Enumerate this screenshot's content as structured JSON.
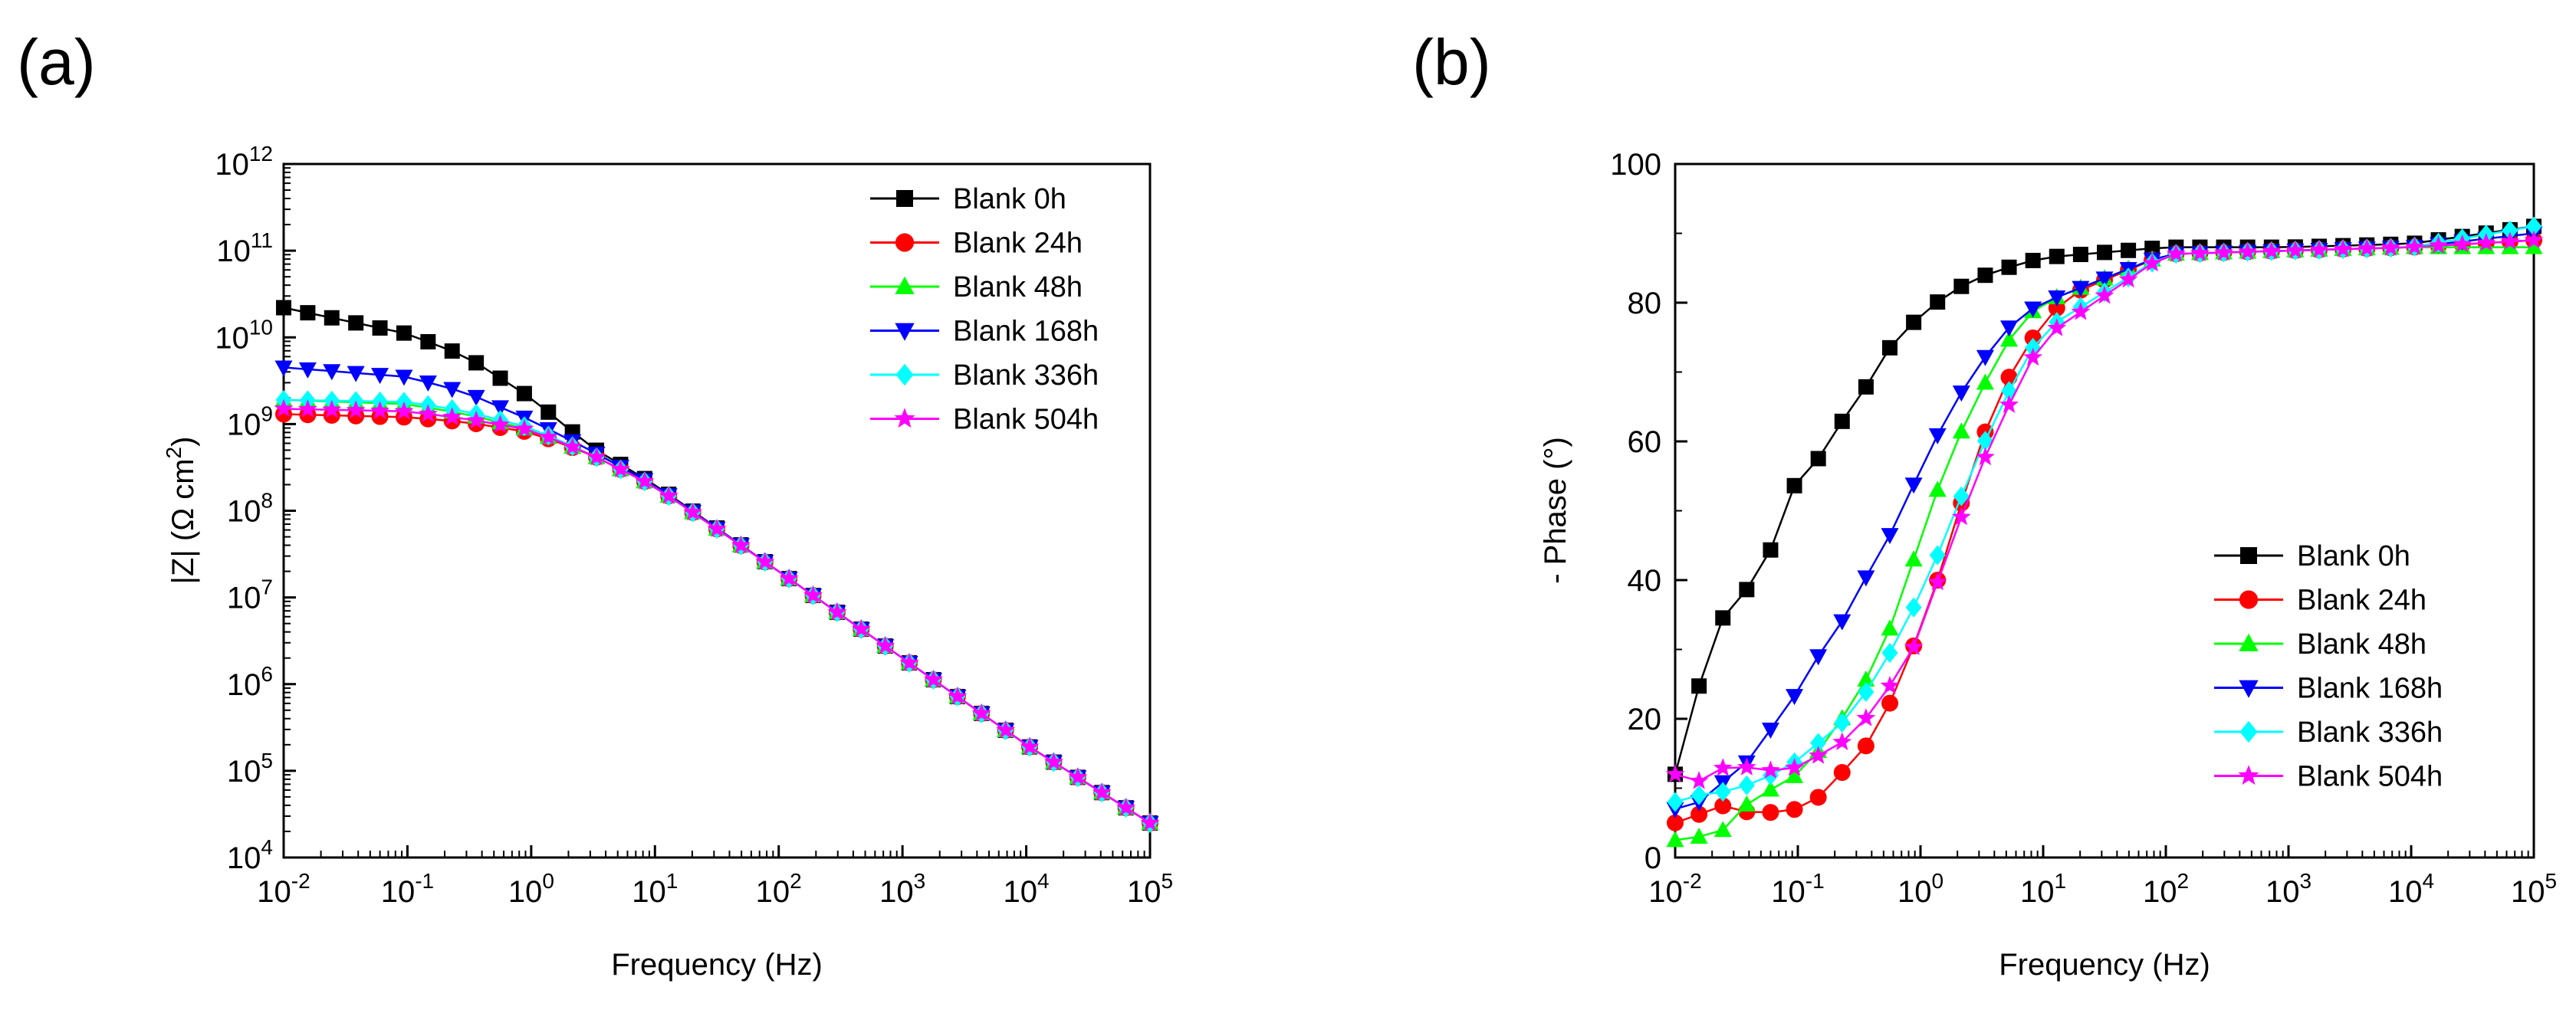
{
  "chart_data": [
    {
      "panel_label": "(a)",
      "type": "line",
      "title": "",
      "xlabel": "Frequency (Hz)",
      "ylabel_prefix": "|Z| (Ω cm",
      "ylabel_sup": "2",
      "ylabel_suffix": ")",
      "xscale": "log",
      "yscale": "log",
      "xlim": [
        0.01,
        100000
      ],
      "ylim": [
        10000,
        1000000000000
      ],
      "xticks": [
        {
          "base": "10",
          "exp": "-2"
        },
        {
          "base": "10",
          "exp": "-1"
        },
        {
          "base": "10",
          "exp": "0"
        },
        {
          "base": "10",
          "exp": "1"
        },
        {
          "base": "10",
          "exp": "2"
        },
        {
          "base": "10",
          "exp": "3"
        },
        {
          "base": "10",
          "exp": "4"
        },
        {
          "base": "10",
          "exp": "5"
        }
      ],
      "yticks": [
        {
          "base": "10",
          "exp": "4"
        },
        {
          "base": "10",
          "exp": "5"
        },
        {
          "base": "10",
          "exp": "6"
        },
        {
          "base": "10",
          "exp": "7"
        },
        {
          "base": "10",
          "exp": "8"
        },
        {
          "base": "10",
          "exp": "9"
        },
        {
          "base": "10",
          "exp": "10"
        },
        {
          "base": "10",
          "exp": "11"
        },
        {
          "base": "10",
          "exp": "12"
        }
      ],
      "legend_position": "top-right",
      "series": [
        {
          "name": "Blank 0h",
          "color": "#000000",
          "marker": "square",
          "x": [
            0.01,
            0.1,
            0.3,
            1,
            3,
            10,
            100,
            1000,
            10000,
            100000
          ],
          "y": [
            22000000000,
            11000000000,
            6000000000,
            2000000000,
            550000000,
            200000000,
            20000000,
            2000000,
            200000,
            25000
          ]
        },
        {
          "name": "Blank 24h",
          "color": "#ff0000",
          "marker": "circle",
          "x": [
            0.01,
            0.1,
            0.3,
            1,
            3,
            10,
            100,
            1000,
            10000,
            100000
          ],
          "y": [
            1300000000,
            1200000000,
            1050000000,
            800000000,
            450000000,
            190000000,
            20000000,
            2000000,
            200000,
            25000
          ]
        },
        {
          "name": "Blank 48h",
          "color": "#00ff00",
          "marker": "triangle-up",
          "x": [
            0.01,
            0.1,
            0.3,
            1,
            3,
            10,
            100,
            1000,
            10000,
            100000
          ],
          "y": [
            1900000000,
            1700000000,
            1300000000,
            850000000,
            450000000,
            190000000,
            20000000,
            2000000,
            200000,
            25000
          ]
        },
        {
          "name": "Blank 168h",
          "color": "#0000ff",
          "marker": "triangle-down",
          "x": [
            0.01,
            0.1,
            0.3,
            1,
            3,
            10,
            100,
            1000,
            10000,
            100000
          ],
          "y": [
            4500000000,
            3500000000,
            2300000000,
            1100000000,
            500000000,
            195000000,
            20000000,
            2000000,
            200000,
            25000
          ]
        },
        {
          "name": "Blank 336h",
          "color": "#00ffff",
          "marker": "diamond",
          "x": [
            0.01,
            0.1,
            0.3,
            1,
            3,
            10,
            100,
            1000,
            10000,
            100000
          ],
          "y": [
            1900000000,
            1800000000,
            1400000000,
            900000000,
            450000000,
            190000000,
            20000000,
            2000000,
            200000,
            25000
          ]
        },
        {
          "name": "Blank 504h",
          "color": "#ff00ff",
          "marker": "star",
          "x": [
            0.01,
            0.1,
            0.3,
            1,
            3,
            10,
            100,
            1000,
            10000,
            100000
          ],
          "y": [
            1500000000,
            1400000000,
            1150000000,
            850000000,
            450000000,
            190000000,
            20000000,
            2000000,
            200000,
            25000
          ]
        }
      ]
    },
    {
      "panel_label": "(b)",
      "type": "line",
      "title": "",
      "xlabel": "Frequency (Hz)",
      "ylabel": "- Phase (°)",
      "xscale": "log",
      "yscale": "linear",
      "xlim": [
        0.01,
        100000
      ],
      "ylim": [
        0,
        100
      ],
      "xticks": [
        {
          "base": "10",
          "exp": "-2"
        },
        {
          "base": "10",
          "exp": "-1"
        },
        {
          "base": "10",
          "exp": "0"
        },
        {
          "base": "10",
          "exp": "1"
        },
        {
          "base": "10",
          "exp": "2"
        },
        {
          "base": "10",
          "exp": "3"
        },
        {
          "base": "10",
          "exp": "4"
        },
        {
          "base": "10",
          "exp": "5"
        }
      ],
      "yticks": [
        "0",
        "20",
        "40",
        "60",
        "80",
        "100"
      ],
      "legend_position": "bottom-right",
      "series": [
        {
          "name": "Blank 0h",
          "color": "#000000",
          "marker": "square",
          "x": [
            0.01,
            0.0158,
            0.025,
            0.04,
            0.063,
            0.1,
            0.158,
            0.25,
            0.4,
            0.63,
            1,
            1.58,
            2.5,
            4,
            6.3,
            10,
            100,
            1000,
            10000,
            100000
          ],
          "y": [
            12,
            25,
            35,
            39,
            45,
            55,
            58,
            64,
            69,
            75,
            78,
            81,
            83,
            84.5,
            85.5,
            86.5,
            88,
            88,
            88.5,
            91
          ]
        },
        {
          "name": "Blank 24h",
          "color": "#ff0000",
          "marker": "circle",
          "x": [
            0.01,
            0.025,
            0.04,
            0.063,
            0.1,
            0.158,
            0.25,
            0.4,
            0.63,
            1,
            1.58,
            2.5,
            4,
            6.3,
            10,
            15.8,
            100,
            1000,
            10000,
            100000
          ],
          "y": [
            5,
            7.5,
            6.5,
            6.5,
            7,
            9,
            13,
            17,
            24,
            33,
            43,
            55,
            65,
            72,
            77,
            81,
            87,
            87.5,
            88,
            89
          ]
        },
        {
          "name": "Blank 48h",
          "color": "#00ff00",
          "marker": "triangle-up",
          "x": [
            0.01,
            0.0158,
            0.025,
            0.04,
            0.063,
            0.1,
            0.158,
            0.25,
            0.4,
            0.63,
            1,
            1.58,
            2.5,
            4,
            6.3,
            10,
            100,
            1000,
            10000,
            100000
          ],
          "y": [
            2.5,
            3,
            4,
            8,
            10,
            12,
            16,
            21,
            27,
            35,
            46,
            56,
            64,
            71,
            77,
            80,
            87,
            87.5,
            88,
            88
          ]
        },
        {
          "name": "Blank 168h",
          "color": "#0000ff",
          "marker": "triangle-down",
          "x": [
            0.01,
            0.0158,
            0.025,
            0.04,
            0.063,
            0.1,
            0.158,
            0.25,
            0.4,
            0.63,
            1,
            1.58,
            2.5,
            4,
            6.3,
            10,
            100,
            1000,
            10000,
            100000
          ],
          "y": [
            7,
            8,
            11,
            14,
            19,
            24,
            30,
            35,
            42,
            48,
            56,
            63,
            69,
            74,
            78,
            80,
            87,
            87.5,
            88,
            90
          ]
        },
        {
          "name": "Blank 336h",
          "color": "#00ffff",
          "marker": "diamond",
          "x": [
            0.01,
            0.0158,
            0.025,
            0.04,
            0.063,
            0.1,
            0.158,
            0.25,
            0.4,
            0.63,
            1,
            1.58,
            2.5,
            4,
            6.3,
            10,
            100,
            1000,
            10000,
            100000
          ],
          "y": [
            8,
            9,
            9.5,
            10.5,
            12,
            14,
            17,
            20,
            25,
            31,
            38,
            46,
            55,
            63,
            70,
            76,
            87,
            87.5,
            88,
            91
          ]
        },
        {
          "name": "Blank 504h",
          "color": "#ff00ff",
          "marker": "star",
          "x": [
            0.01,
            0.0158,
            0.025,
            0.04,
            0.063,
            0.1,
            0.158,
            0.25,
            0.4,
            0.63,
            1,
            1.58,
            2.5,
            4,
            6.3,
            10,
            100,
            1000,
            10000,
            100000
          ],
          "y": [
            12,
            11,
            13,
            13,
            12.5,
            13,
            15,
            17,
            21,
            26,
            32,
            43,
            52,
            61,
            68,
            75,
            87,
            87.5,
            88,
            89
          ]
        }
      ]
    }
  ]
}
